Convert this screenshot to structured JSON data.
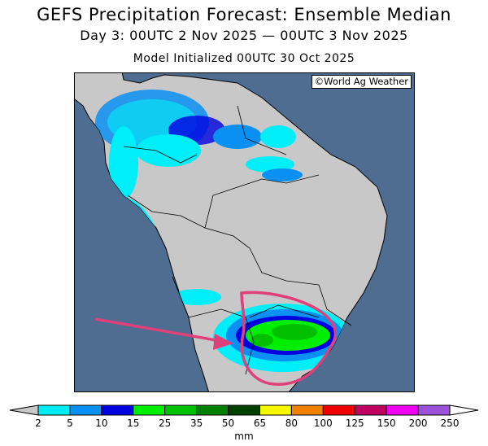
{
  "title": "GEFS Precipitation Forecast: Ensemble Median",
  "subtitle": "Day 3: 00UTC 2 Nov 2025 — 00UTC 3 Nov 2025",
  "init": "Model Initialized 00UTC 30 Oct 2025",
  "credit": "©World Ag Weather",
  "colorbar": {
    "unit": "mm",
    "ticks": [
      "2",
      "5",
      "10",
      "15",
      "25",
      "35",
      "50",
      "65",
      "80",
      "100",
      "125",
      "150",
      "200",
      "250"
    ],
    "colors": [
      "#00eef8",
      "#0a90f2",
      "#0000e0",
      "#00ee00",
      "#00c000",
      "#008000",
      "#004000",
      "#f8f800",
      "#f08000",
      "#f00000",
      "#c00060",
      "#f000f0",
      "#9c50d8"
    ],
    "low_color": "#c8c8c8",
    "high_color": "#ffffff"
  },
  "colors": {
    "ocean": "#4e6d91",
    "land": "#c8c8c8",
    "annotation": "#e0407a"
  }
}
